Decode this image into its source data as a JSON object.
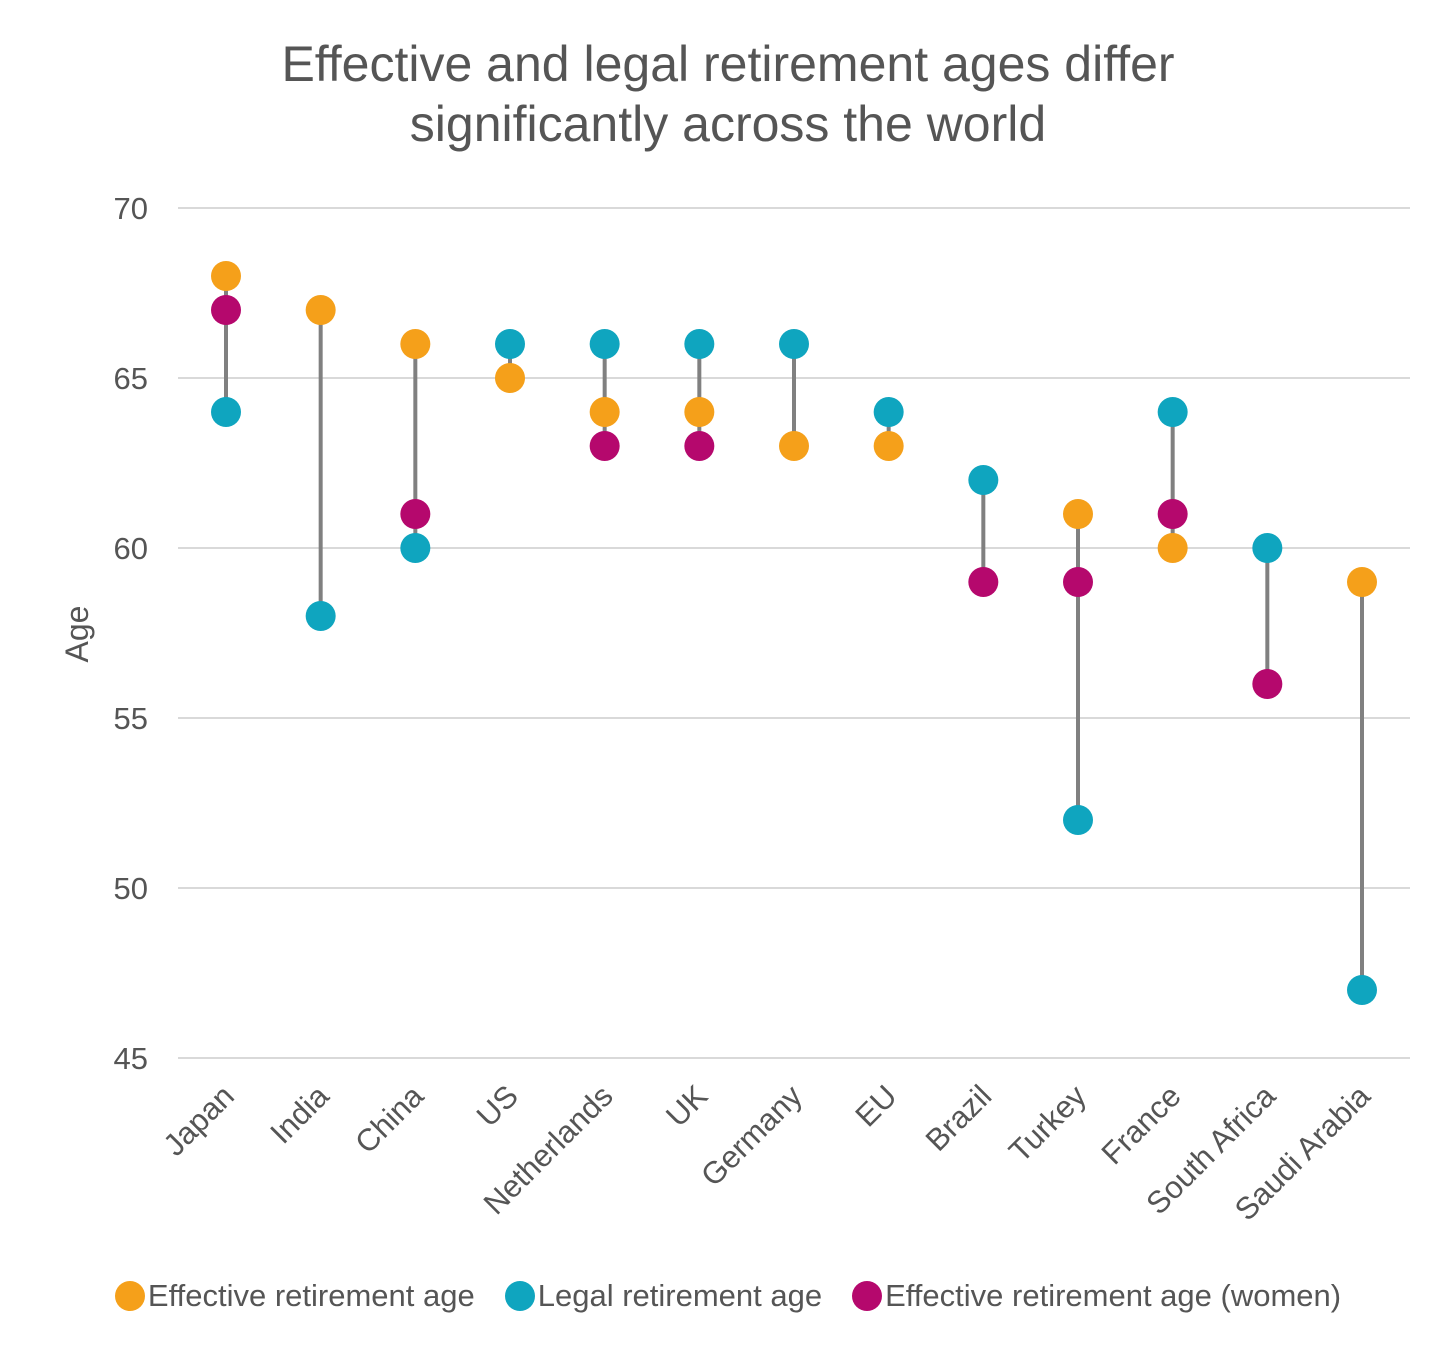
{
  "colors": {
    "effective": "#F5A01A",
    "legal": "#0FA5BF",
    "women": "#B5086D",
    "connector": "#808080",
    "grid": "#D9D9D9",
    "text": "#555555"
  },
  "chart_data": {
    "type": "scatter",
    "subtype": "dot-range",
    "title_lines": [
      "Effective and legal retirement ages differ",
      "significantly across the world"
    ],
    "xlabel": "",
    "ylabel": "Age",
    "ylim": [
      45,
      70
    ],
    "yticks": [
      45,
      50,
      55,
      60,
      65,
      70
    ],
    "grid": true,
    "legend_position": "bottom",
    "categories": [
      "Japan",
      "India",
      "China",
      "US",
      "Netherlands",
      "UK",
      "Germany",
      "EU",
      "Brazil",
      "Turkey",
      "France",
      "South Africa",
      "Saudi Arabia"
    ],
    "series": [
      {
        "name": "Effective retirement age",
        "color_key": "effective",
        "values": [
          68,
          67,
          66,
          65,
          64,
          64,
          63,
          63,
          null,
          61,
          60,
          null,
          59
        ]
      },
      {
        "name": "Legal retirement age",
        "color_key": "legal",
        "values": [
          64,
          58,
          60,
          66,
          66,
          66,
          66,
          64,
          62,
          52,
          64,
          60,
          47
        ]
      },
      {
        "name": "Effective retirement age (women)",
        "color_key": "women",
        "values": [
          67,
          null,
          61,
          null,
          63,
          63,
          null,
          null,
          59,
          59,
          61,
          56,
          null
        ]
      }
    ]
  }
}
